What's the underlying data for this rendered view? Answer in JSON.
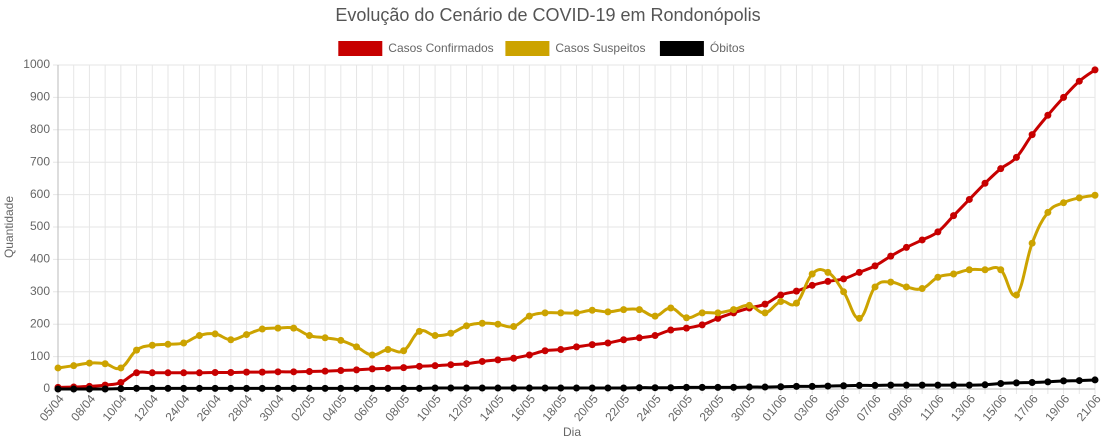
{
  "chart_data": {
    "type": "line",
    "title": "Evolução do Cenário de COVID-19 em Rondonópolis",
    "x_label": "Dia",
    "y_label": "Quantidade",
    "categories": [
      "05/04",
      null,
      "08/04",
      null,
      "10/04",
      null,
      "12/04",
      null,
      "24/04",
      null,
      "26/04",
      null,
      "28/04",
      null,
      "30/04",
      null,
      "02/05",
      null,
      "04/05",
      null,
      "06/05",
      null,
      "08/05",
      null,
      "10/05",
      null,
      "12/05",
      null,
      "14/05",
      null,
      "16/05",
      null,
      "18/05",
      null,
      "20/05",
      null,
      "22/05",
      null,
      "24/05",
      null,
      "26/05",
      null,
      "28/05",
      null,
      "30/05",
      null,
      "01/06",
      null,
      "03/06",
      null,
      "05/06",
      null,
      "07/06",
      null,
      "09/06",
      null,
      "11/06",
      null,
      "13/06",
      null,
      "15/06",
      null,
      "17/06",
      null,
      "19/06",
      null,
      "21/06"
    ],
    "series": [
      {
        "name": "Casos Confirmados",
        "color": "#c70000",
        "values": [
          5,
          6,
          8,
          12,
          20,
          50,
          50,
          50,
          50,
          50,
          51,
          51,
          52,
          52,
          53,
          53,
          54,
          55,
          57,
          59,
          62,
          64,
          66,
          70,
          72,
          75,
          78,
          85,
          90,
          95,
          105,
          118,
          122,
          130,
          137,
          142,
          152,
          158,
          165,
          182,
          188,
          198,
          218,
          235,
          250,
          262,
          290,
          302,
          320,
          332,
          340,
          360,
          380,
          410,
          437,
          460,
          485,
          535,
          585,
          635,
          680,
          715,
          785,
          845,
          900,
          950,
          985
        ]
      },
      {
        "name": "Casos Suspeitos",
        "color": "#cca300",
        "values": [
          65,
          72,
          80,
          78,
          65,
          120,
          135,
          138,
          142,
          165,
          170,
          152,
          168,
          185,
          188,
          188,
          165,
          158,
          150,
          130,
          105,
          122,
          118,
          178,
          165,
          172,
          195,
          203,
          200,
          193,
          225,
          235,
          235,
          235,
          243,
          238,
          245,
          245,
          225,
          250,
          220,
          235,
          235,
          245,
          258,
          235,
          270,
          265,
          355,
          360,
          300,
          218,
          315,
          330,
          315,
          310,
          345,
          355,
          368,
          368,
          368,
          290,
          450,
          545,
          575,
          590,
          598
        ]
      },
      {
        "name": "Óbitos",
        "color": "#000000",
        "values": [
          0,
          0,
          0,
          0,
          1,
          2,
          2,
          2,
          2,
          2,
          2,
          2,
          2,
          2,
          2,
          2,
          2,
          2,
          2,
          2,
          2,
          2,
          2,
          2,
          3,
          3,
          3,
          3,
          3,
          3,
          3,
          3,
          3,
          3,
          3,
          3,
          3,
          4,
          4,
          4,
          5,
          5,
          5,
          5,
          6,
          6,
          7,
          8,
          8,
          9,
          10,
          11,
          11,
          12,
          12,
          12,
          12,
          12,
          12,
          13,
          17,
          19,
          20,
          22,
          25,
          26,
          28
        ]
      }
    ],
    "ylim": [
      0,
      1000
    ],
    "yticks": [
      0,
      100,
      200,
      300,
      400,
      500,
      600,
      700,
      800,
      900,
      1000
    ],
    "grid": true
  }
}
